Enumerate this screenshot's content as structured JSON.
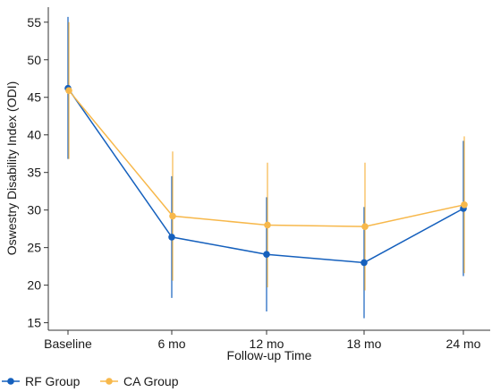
{
  "chart_data": {
    "type": "line",
    "xlabel": "Follow-up Time",
    "ylabel": "Oswestry Disability Index (ODI)",
    "categories": [
      "Baseline",
      "6 mo",
      "12 mo",
      "18 mo",
      "24 mo"
    ],
    "ylim": [
      14,
      57
    ],
    "yticks": [
      15,
      20,
      25,
      30,
      35,
      40,
      45,
      50,
      55
    ],
    "grid": false,
    "legend_position": "bottom-left",
    "series": [
      {
        "name": "RF Group",
        "color": "#1560bd",
        "values": [
          46.2,
          26.4,
          24.1,
          23.0,
          30.2
        ],
        "error_low": [
          36.8,
          18.3,
          16.5,
          15.6,
          21.2
        ],
        "error_high": [
          55.7,
          34.5,
          31.7,
          30.4,
          39.2
        ]
      },
      {
        "name": "CA Group",
        "color": "#f7b84b",
        "values": [
          45.9,
          29.2,
          28.0,
          27.8,
          30.7
        ],
        "error_low": [
          36.8,
          20.6,
          19.7,
          19.3,
          21.6
        ],
        "error_high": [
          55.0,
          37.8,
          36.3,
          36.3,
          39.8
        ]
      }
    ]
  }
}
